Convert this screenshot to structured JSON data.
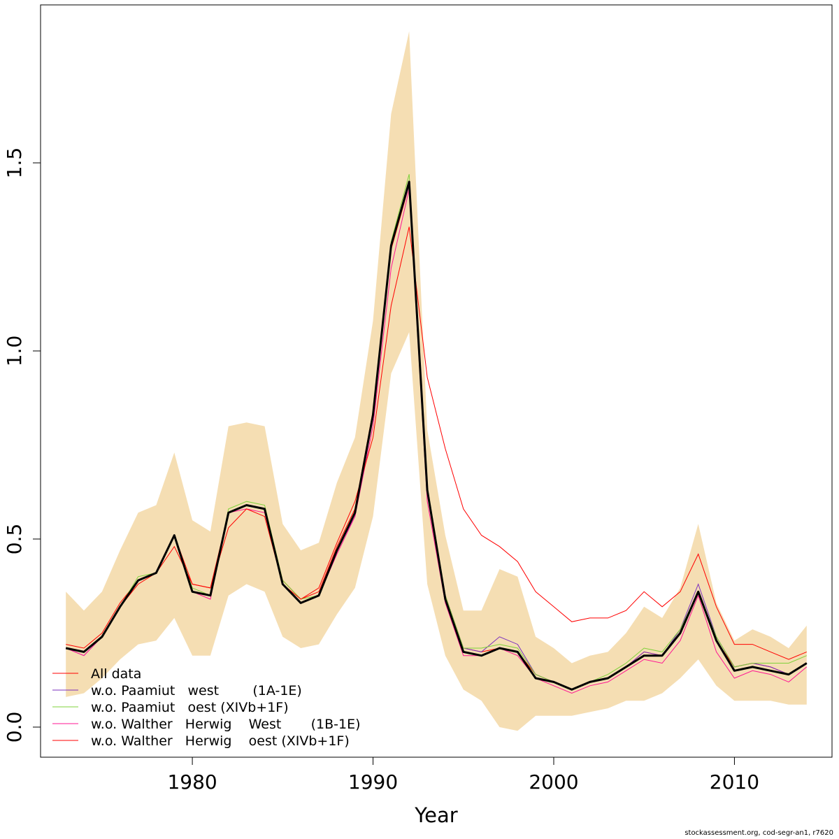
{
  "chart_data": {
    "type": "line",
    "xlabel": "Year",
    "ylabel": "",
    "xlim": [
      1971.6,
      2015.4
    ],
    "ylim": [
      -0.08,
      1.92
    ],
    "xticks": [
      1980,
      1990,
      2000,
      2010
    ],
    "yticks": [
      0.0,
      0.5,
      1.0,
      1.5
    ],
    "ytick_labels": [
      "0.0",
      "0.5",
      "1.0",
      "1.5"
    ],
    "legend_position": "bottom-left",
    "grid": false,
    "x": [
      1973,
      1974,
      1975,
      1976,
      1977,
      1978,
      1979,
      1980,
      1981,
      1982,
      1983,
      1984,
      1985,
      1986,
      1987,
      1988,
      1989,
      1990,
      1991,
      1992,
      1993,
      1994,
      1995,
      1996,
      1997,
      1998,
      1999,
      2000,
      2001,
      2002,
      2003,
      2004,
      2005,
      2006,
      2007,
      2008,
      2009,
      2010,
      2011,
      2012,
      2013,
      2014
    ],
    "confidence_band": {
      "color": "#f5deb3",
      "lower": [
        0.08,
        0.09,
        0.13,
        0.18,
        0.22,
        0.23,
        0.29,
        0.19,
        0.19,
        0.35,
        0.38,
        0.36,
        0.24,
        0.21,
        0.22,
        0.3,
        0.37,
        0.56,
        0.94,
        1.05,
        0.38,
        0.19,
        0.1,
        0.07,
        0.0,
        -0.01,
        0.03,
        0.03,
        0.03,
        0.04,
        0.05,
        0.07,
        0.07,
        0.09,
        0.13,
        0.18,
        0.11,
        0.07,
        0.07,
        0.07,
        0.06,
        0.06
      ],
      "upper": [
        0.36,
        0.31,
        0.36,
        0.47,
        0.57,
        0.59,
        0.73,
        0.55,
        0.52,
        0.8,
        0.81,
        0.8,
        0.54,
        0.47,
        0.49,
        0.65,
        0.77,
        1.08,
        1.63,
        1.85,
        0.79,
        0.51,
        0.31,
        0.31,
        0.42,
        0.4,
        0.24,
        0.21,
        0.17,
        0.19,
        0.2,
        0.25,
        0.32,
        0.29,
        0.37,
        0.54,
        0.33,
        0.23,
        0.26,
        0.24,
        0.21,
        0.27
      ]
    },
    "main_series": {
      "name": "",
      "color": "#000000",
      "values": [
        0.21,
        0.2,
        0.24,
        0.32,
        0.39,
        0.41,
        0.51,
        0.36,
        0.35,
        0.57,
        0.59,
        0.58,
        0.38,
        0.33,
        0.35,
        0.47,
        0.57,
        0.83,
        1.28,
        1.45,
        0.63,
        0.34,
        0.2,
        0.19,
        0.21,
        0.2,
        0.13,
        0.12,
        0.1,
        0.12,
        0.13,
        0.16,
        0.19,
        0.19,
        0.25,
        0.36,
        0.23,
        0.15,
        0.16,
        0.15,
        0.14,
        0.17
      ]
    },
    "series": [
      {
        "name": "All data",
        "color": "#ff0000",
        "values": [
          0.22,
          0.21,
          0.25,
          0.33,
          0.39,
          0.41,
          0.51,
          0.38,
          0.37,
          0.57,
          0.59,
          0.58,
          0.39,
          0.34,
          0.36,
          0.48,
          0.58,
          0.84,
          1.27,
          1.44,
          0.63,
          0.35,
          0.21,
          0.2,
          0.21,
          0.2,
          0.14,
          0.12,
          0.1,
          0.12,
          0.13,
          0.16,
          0.2,
          0.19,
          0.25,
          0.36,
          0.23,
          0.16,
          0.17,
          0.16,
          0.14,
          0.17
        ]
      },
      {
        "name": "w.o. Paamiut   west        (1A-1E)",
        "color": "#7b2fbe",
        "values": [
          0.21,
          0.19,
          0.24,
          0.32,
          0.39,
          0.41,
          0.51,
          0.36,
          0.35,
          0.57,
          0.59,
          0.58,
          0.38,
          0.33,
          0.35,
          0.47,
          0.56,
          0.82,
          1.28,
          1.44,
          0.63,
          0.35,
          0.21,
          0.2,
          0.24,
          0.22,
          0.14,
          0.12,
          0.1,
          0.12,
          0.13,
          0.16,
          0.2,
          0.19,
          0.26,
          0.38,
          0.24,
          0.16,
          0.17,
          0.16,
          0.14,
          0.17
        ]
      },
      {
        "name": "w.o. Paamiut   oest (XIVb+1F)",
        "color": "#7fd13b",
        "values": [
          0.21,
          0.2,
          0.24,
          0.32,
          0.4,
          0.41,
          0.51,
          0.37,
          0.35,
          0.58,
          0.6,
          0.59,
          0.39,
          0.34,
          0.35,
          0.47,
          0.57,
          0.83,
          1.29,
          1.47,
          0.64,
          0.35,
          0.21,
          0.21,
          0.22,
          0.21,
          0.14,
          0.12,
          0.1,
          0.12,
          0.14,
          0.17,
          0.21,
          0.2,
          0.26,
          0.36,
          0.24,
          0.16,
          0.17,
          0.17,
          0.17,
          0.19
        ]
      },
      {
        "name": "w.o. Walther   Herwig    West       (1B-1E)",
        "color": "#ff1493",
        "values": [
          0.21,
          0.19,
          0.24,
          0.32,
          0.39,
          0.41,
          0.51,
          0.36,
          0.34,
          0.57,
          0.58,
          0.57,
          0.38,
          0.33,
          0.35,
          0.46,
          0.56,
          0.8,
          1.22,
          1.43,
          0.6,
          0.33,
          0.19,
          0.19,
          0.21,
          0.19,
          0.13,
          0.11,
          0.09,
          0.11,
          0.12,
          0.15,
          0.18,
          0.17,
          0.23,
          0.35,
          0.2,
          0.13,
          0.15,
          0.14,
          0.12,
          0.16
        ]
      },
      {
        "name": "w.o. Walther   Herwig    oest (XIVb+1F)",
        "color": "#ff0000",
        "values": [
          0.21,
          0.2,
          0.24,
          0.32,
          0.38,
          0.41,
          0.48,
          0.38,
          0.37,
          0.53,
          0.58,
          0.56,
          0.38,
          0.34,
          0.37,
          0.49,
          0.6,
          0.77,
          1.12,
          1.33,
          0.93,
          0.74,
          0.58,
          0.51,
          0.48,
          0.44,
          0.36,
          0.32,
          0.28,
          0.29,
          0.29,
          0.31,
          0.36,
          0.32,
          0.36,
          0.46,
          0.32,
          0.22,
          0.22,
          0.2,
          0.18,
          0.2
        ]
      }
    ]
  },
  "footer": "stockassessment.org, cod-segr-an1, r7620"
}
